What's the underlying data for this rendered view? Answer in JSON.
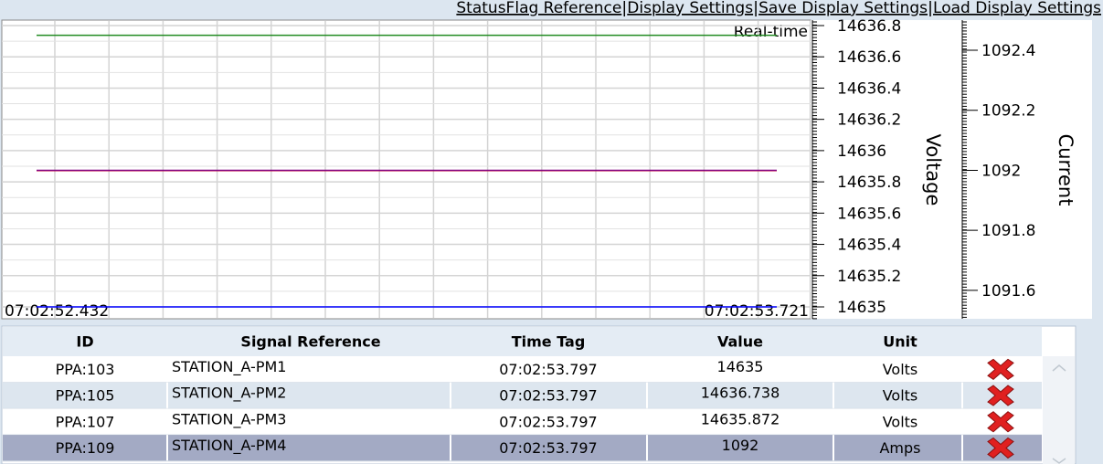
{
  "menu": [
    "StatusFlag Reference",
    "Display Settings",
    "Save Display Settings",
    "Load Display Settings"
  ],
  "chart_data": {
    "type": "line",
    "x": [
      "07:02:52.432",
      "07:02:53.721"
    ],
    "annotation": "Real-time",
    "ylabel": "Voltage",
    "y2label": "Current",
    "ylim": [
      14635,
      14636.8
    ],
    "yticks": [
      14635,
      14635.2,
      14635.4,
      14635.6,
      14635.8,
      14636,
      14636.2,
      14636.4,
      14636.6,
      14636.8
    ],
    "y2lim": [
      1091.545,
      1092.482
    ],
    "y2ticks": [
      1091.6,
      1091.8,
      1092,
      1092.2,
      1092.4
    ],
    "grid": true,
    "series": [
      {
        "name": "STATION_A-PM1",
        "color": "#0000ff",
        "values": [
          14635,
          14635
        ]
      },
      {
        "name": "STATION_A-PM2",
        "color": "#228b22",
        "values": [
          14636.738,
          14636.738
        ]
      },
      {
        "name": "STATION_A-PM3",
        "color": "#ff0000",
        "values": [
          14635.872,
          14635.872
        ]
      },
      {
        "name": "STATION_A-PM4",
        "color": "#800080",
        "values": [
          1092,
          1092
        ],
        "axis": "y2"
      }
    ]
  },
  "table": {
    "columns": [
      "ID",
      "Signal Reference",
      "Time Tag",
      "Value",
      "Unit"
    ],
    "rows": [
      {
        "id": "PPA:103",
        "time_tag": "07:02:53.797",
        "unit": "Volts"
      },
      {
        "id": "PPA:105",
        "time_tag": "07:02:53.797",
        "unit": "Volts"
      },
      {
        "id": "PPA:107",
        "time_tag": "07:02:53.797",
        "unit": "Volts"
      },
      {
        "id": "PPA:109",
        "time_tag": "07:02:53.797",
        "unit": "Amps"
      }
    ]
  }
}
